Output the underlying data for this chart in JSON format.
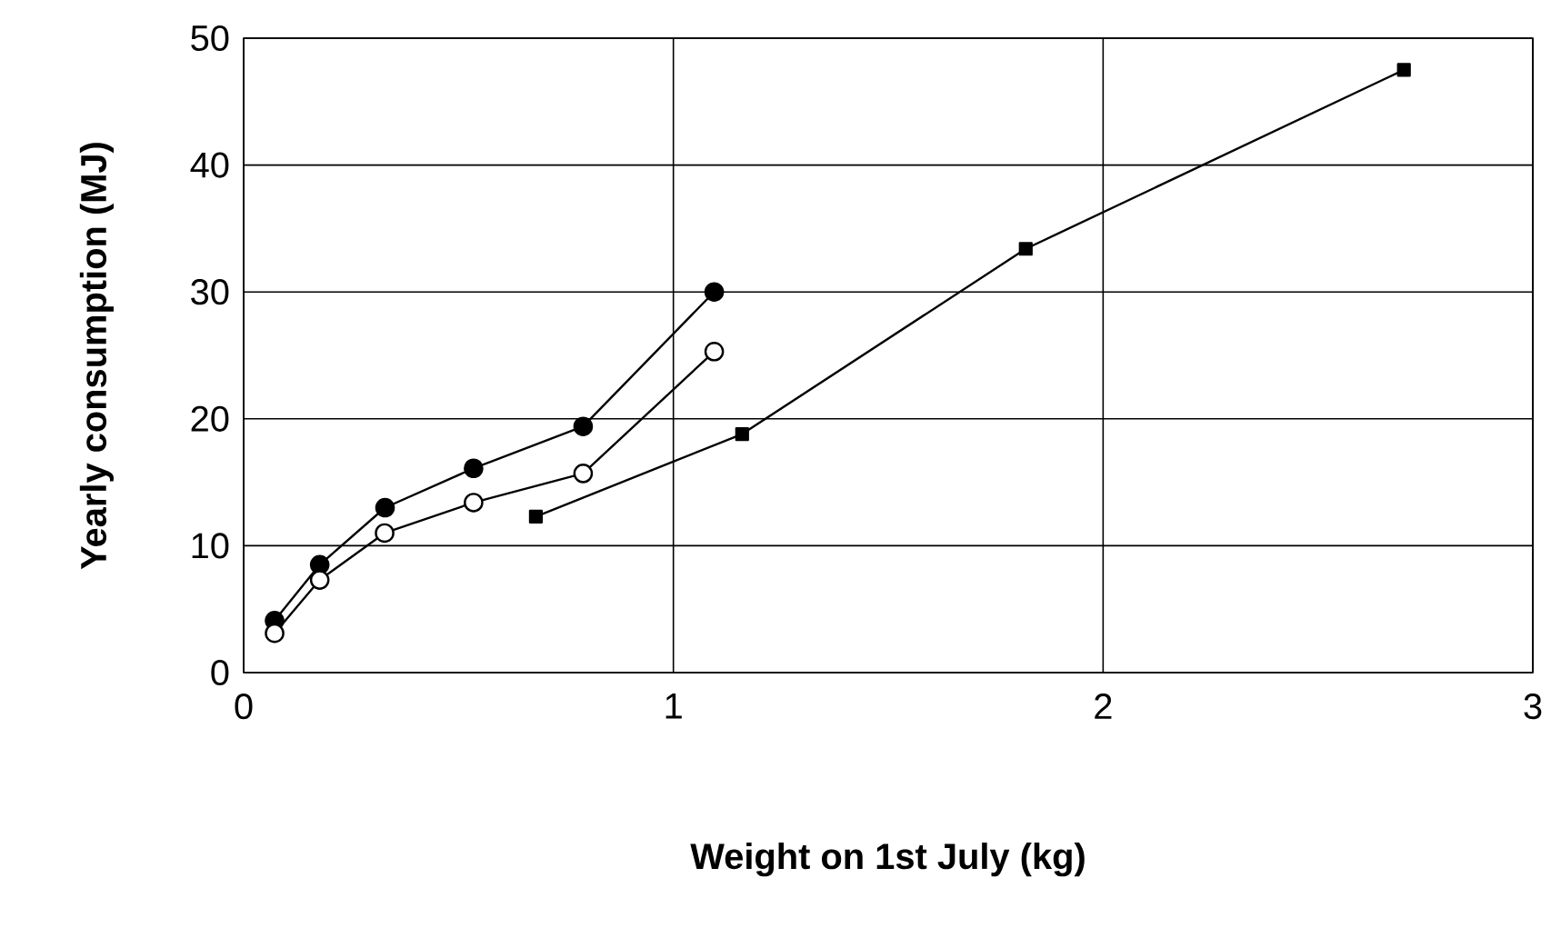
{
  "chart_data": {
    "type": "line",
    "xlabel": "Weight on 1st July (kg)",
    "ylabel": "Yearly consumption (MJ)",
    "xlim": [
      0,
      3
    ],
    "ylim": [
      0,
      50
    ],
    "xticks": [
      0,
      1,
      2,
      3
    ],
    "yticks": [
      0,
      10,
      20,
      30,
      40,
      50
    ],
    "grid": true,
    "line_style": "solid",
    "series": [
      {
        "color": "#000000",
        "marker": "circle",
        "x": [
          0.072,
          0.177,
          0.329,
          0.535,
          0.79,
          1.095
        ],
        "values": [
          4.1,
          8.5,
          13.0,
          16.1,
          19.4,
          30.0
        ]
      },
      {
        "color": "#000000",
        "colors": [
          "#ffffff",
          "#ffffff",
          "#ffffff",
          "#ffffff",
          "#ffffff",
          "#ffffff"
        ],
        "marker": "circle",
        "x": [
          0.072,
          0.177,
          0.328,
          0.535,
          0.79,
          1.095
        ],
        "values": [
          3.1,
          7.3,
          11.0,
          13.4,
          15.7,
          25.3
        ]
      },
      {
        "color": "#000000",
        "marker": "square",
        "x": [
          0.68,
          1.16,
          1.82,
          2.7
        ],
        "values": [
          12.3,
          18.8,
          33.4,
          47.5
        ]
      }
    ]
  }
}
